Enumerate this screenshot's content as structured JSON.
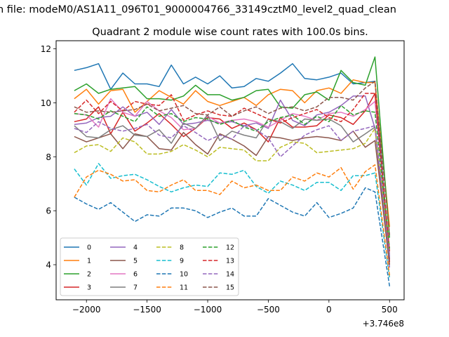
{
  "suptitle": "n file: modeM0/AS1A11_096T01_9000004766_33149cztM0_level2_quad_clean",
  "chart_data": {
    "type": "line",
    "title": "Quadrant 2 module wise count rates with 100.0s bins.",
    "xlabel": "",
    "ylabel": "",
    "x_offset_label": "+3.746e8",
    "xlim": [
      -2250,
      620
    ],
    "ylim": [
      2.7,
      12.3
    ],
    "xticks": [
      -2000,
      -1500,
      -1000,
      -500,
      0,
      500
    ],
    "xtick_labels": [
      "−2000",
      "−1500",
      "−1000",
      "−500",
      "0",
      "500"
    ],
    "yticks": [
      4,
      6,
      8,
      10,
      12
    ],
    "ytick_labels": [
      "4",
      "6",
      "8",
      "10",
      "12"
    ],
    "grid": false,
    "legend_placement": "lower-left",
    "legend_columns": 4,
    "x": [
      -2100,
      -2000,
      -1900,
      -1800,
      -1700,
      -1600,
      -1500,
      -1400,
      -1300,
      -1200,
      -1100,
      -1000,
      -900,
      -800,
      -700,
      -600,
      -500,
      -400,
      -300,
      -200,
      -100,
      0,
      100,
      200,
      300,
      380,
      500
    ],
    "series": [
      {
        "name": "0",
        "color": "#1f77b4",
        "dash": "solid",
        "values": [
          11.2,
          11.3,
          11.45,
          10.5,
          11.1,
          10.7,
          10.7,
          10.6,
          11.4,
          10.7,
          10.95,
          10.7,
          11.0,
          10.55,
          10.6,
          10.9,
          10.8,
          11.1,
          11.45,
          10.9,
          10.85,
          10.95,
          11.1,
          10.7,
          10.75,
          10.8,
          4.2
        ]
      },
      {
        "name": "1",
        "color": "#ff7f0e",
        "dash": "solid",
        "values": [
          10.15,
          10.5,
          9.95,
          10.45,
          10.5,
          9.65,
          10.05,
          10.45,
          10.2,
          9.95,
          10.45,
          10.05,
          9.9,
          10.05,
          10.2,
          9.9,
          10.3,
          10.5,
          10.45,
          10.0,
          10.45,
          10.55,
          10.35,
          10.85,
          10.75,
          10.75,
          5.4
        ]
      },
      {
        "name": "2",
        "color": "#2ca02c",
        "dash": "solid",
        "values": [
          10.45,
          10.7,
          10.35,
          10.5,
          10.55,
          10.6,
          10.15,
          10.15,
          10.1,
          10.25,
          10.65,
          10.3,
          10.3,
          10.1,
          10.2,
          10.45,
          10.5,
          9.85,
          9.8,
          10.3,
          10.4,
          10.1,
          11.2,
          10.75,
          10.65,
          11.7,
          5.0
        ]
      },
      {
        "name": "3",
        "color": "#d62728",
        "dash": "solid",
        "values": [
          9.3,
          9.4,
          9.85,
          8.85,
          9.65,
          8.95,
          9.25,
          9.6,
          9.2,
          8.75,
          9.05,
          9.45,
          9.4,
          9.05,
          9.25,
          9.0,
          8.55,
          9.45,
          9.1,
          9.1,
          9.15,
          9.55,
          9.45,
          9.2,
          9.7,
          10.35,
          4.1
        ]
      },
      {
        "name": "4",
        "color": "#9467bd",
        "dash": "solid",
        "values": [
          9.2,
          9.25,
          9.45,
          9.5,
          9.85,
          9.5,
          9.65,
          9.2,
          9.75,
          9.2,
          9.25,
          9.35,
          9.25,
          9.3,
          9.15,
          9.25,
          9.05,
          10.1,
          9.35,
          9.15,
          9.55,
          9.65,
          9.9,
          10.25,
          10.25,
          9.05,
          3.9
        ]
      },
      {
        "name": "5",
        "color": "#8c564b",
        "dash": "solid",
        "values": [
          8.75,
          8.55,
          8.7,
          8.85,
          8.3,
          8.85,
          8.75,
          8.3,
          8.25,
          8.9,
          8.45,
          8.1,
          8.85,
          8.65,
          8.4,
          8.05,
          8.75,
          8.7,
          8.6,
          8.7,
          8.75,
          8.7,
          8.6,
          8.95,
          8.35,
          8.6,
          4.0
        ]
      },
      {
        "name": "6",
        "color": "#e377c2",
        "dash": "solid",
        "values": [
          9.6,
          9.55,
          9.1,
          10.15,
          9.65,
          9.5,
          10.05,
          9.7,
          9.45,
          9.0,
          9.05,
          9.5,
          9.25,
          9.35,
          9.4,
          9.3,
          9.1,
          9.35,
          9.6,
          9.5,
          9.35,
          9.6,
          9.65,
          9.5,
          9.75,
          10.05,
          4.4
        ]
      },
      {
        "name": "7",
        "color": "#7f7f7f",
        "dash": "solid",
        "values": [
          9.15,
          8.75,
          8.7,
          9.0,
          9.15,
          8.8,
          8.75,
          9.0,
          8.5,
          9.25,
          9.05,
          9.55,
          8.6,
          8.95,
          8.8,
          8.7,
          9.4,
          9.3,
          9.05,
          9.4,
          9.35,
          9.4,
          9.15,
          8.55,
          8.85,
          9.1,
          4.3
        ]
      },
      {
        "name": "8",
        "color": "#bcbd22",
        "dash": "dashed",
        "values": [
          8.15,
          8.4,
          8.45,
          8.2,
          8.7,
          8.55,
          8.1,
          8.1,
          8.2,
          8.45,
          8.25,
          8.0,
          8.35,
          8.3,
          8.25,
          7.85,
          7.85,
          8.35,
          8.55,
          8.5,
          8.15,
          8.2,
          8.25,
          8.3,
          8.5,
          9.05,
          4.5
        ]
      },
      {
        "name": "9",
        "color": "#17becf",
        "dash": "dashed",
        "values": [
          7.55,
          6.95,
          7.75,
          7.2,
          7.3,
          7.35,
          7.15,
          6.9,
          6.7,
          6.85,
          6.95,
          6.9,
          7.4,
          7.35,
          7.5,
          6.9,
          6.65,
          7.1,
          6.95,
          6.75,
          7.05,
          7.05,
          6.75,
          7.3,
          7.3,
          7.4,
          3.5
        ]
      },
      {
        "name": "10",
        "color": "#1f77b4",
        "dash": "dashed",
        "values": [
          6.5,
          6.25,
          6.05,
          6.3,
          5.95,
          5.6,
          5.85,
          5.8,
          6.1,
          6.1,
          6.0,
          5.75,
          5.95,
          6.1,
          5.8,
          5.8,
          6.45,
          6.2,
          5.95,
          5.8,
          6.3,
          5.75,
          5.9,
          6.1,
          6.85,
          6.7,
          3.2
        ]
      },
      {
        "name": "11",
        "color": "#ff7f0e",
        "dash": "dashed",
        "values": [
          6.5,
          7.25,
          7.5,
          7.35,
          7.1,
          7.15,
          6.75,
          6.7,
          6.95,
          7.15,
          6.75,
          6.75,
          6.6,
          7.1,
          6.85,
          6.95,
          6.75,
          6.75,
          7.25,
          7.1,
          7.4,
          7.25,
          7.6,
          6.8,
          7.45,
          7.7,
          3.6
        ]
      },
      {
        "name": "12",
        "color": "#2ca02c",
        "dash": "dashed",
        "values": [
          9.6,
          9.55,
          9.4,
          9.7,
          9.5,
          9.3,
          9.85,
          9.5,
          9.6,
          9.3,
          9.45,
          9.4,
          9.2,
          9.35,
          9.1,
          8.95,
          9.3,
          9.45,
          9.55,
          9.2,
          9.5,
          9.3,
          9.9,
          9.55,
          9.7,
          9.65,
          4.6
        ]
      },
      {
        "name": "13",
        "color": "#d62728",
        "dash": "dashed",
        "values": [
          9.65,
          10.1,
          9.6,
          10.05,
          9.7,
          10.05,
          9.95,
          9.9,
          10.3,
          9.35,
          9.55,
          9.7,
          9.55,
          9.5,
          9.8,
          9.6,
          9.4,
          9.25,
          9.45,
          9.6,
          9.75,
          9.45,
          9.3,
          9.75,
          10.35,
          10.35,
          4.5
        ]
      },
      {
        "name": "14",
        "color": "#9467bd",
        "dash": "dashed",
        "values": [
          9.05,
          8.9,
          9.3,
          9.05,
          8.95,
          9.05,
          9.2,
          8.8,
          8.7,
          9.15,
          8.9,
          8.6,
          8.8,
          8.65,
          9.15,
          9.0,
          8.7,
          8.0,
          8.4,
          8.8,
          9.0,
          9.15,
          8.6,
          8.95,
          9.05,
          9.15,
          4.3
        ]
      },
      {
        "name": "15",
        "color": "#8c564b",
        "dash": "dashed",
        "values": [
          9.85,
          9.65,
          9.7,
          9.65,
          9.7,
          9.75,
          9.95,
          9.7,
          9.8,
          9.9,
          9.6,
          9.55,
          9.85,
          9.5,
          9.7,
          9.85,
          9.6,
          9.8,
          9.85,
          9.7,
          9.85,
          10.2,
          10.2,
          10.1,
          10.55,
          10.8,
          5.1
        ]
      }
    ]
  }
}
